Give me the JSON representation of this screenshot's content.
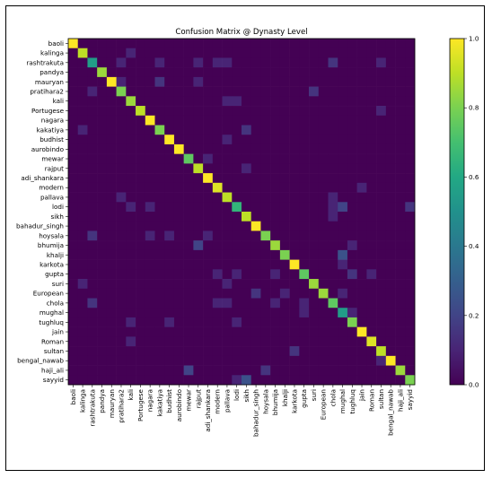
{
  "chart_data": {
    "type": "heatmap",
    "title": "Confusion Matrix @ Dynasty Level",
    "labels": [
      "baoli",
      "kalinga",
      "rashtrakuta",
      "pandya",
      "mauryan",
      "pratihara2",
      "kali",
      "Portugese",
      "nagara",
      "kakatiya",
      "budhist",
      "aurobindo",
      "mewar",
      "rajput",
      "adi_shankara",
      "modern",
      "pallava",
      "lodi",
      "sikh",
      "bahadur_singh",
      "hoysala",
      "bhumija",
      "khalji",
      "karkota",
      "gupta",
      "suri",
      "European",
      "chola",
      "mughal",
      "tughluq",
      "jain",
      "Roman",
      "sultan",
      "bengal_nawab",
      "haji_ali",
      "sayyid"
    ],
    "diagonal": [
      1.0,
      0.9,
      0.55,
      0.85,
      1.0,
      0.8,
      0.85,
      0.9,
      1.0,
      0.8,
      1.0,
      1.0,
      0.75,
      0.9,
      1.0,
      0.95,
      0.9,
      0.65,
      0.9,
      1.0,
      0.8,
      0.85,
      0.8,
      1.0,
      0.75,
      0.85,
      0.85,
      0.75,
      0.55,
      0.8,
      1.0,
      0.95,
      0.9,
      1.0,
      0.85,
      0.8
    ],
    "off_diagonal": [
      [
        1,
        6,
        0.1
      ],
      [
        2,
        5,
        0.1
      ],
      [
        2,
        9,
        0.1
      ],
      [
        2,
        13,
        0.1
      ],
      [
        2,
        15,
        0.1
      ],
      [
        2,
        16,
        0.1
      ],
      [
        2,
        27,
        0.15
      ],
      [
        2,
        32,
        0.1
      ],
      [
        4,
        5,
        0.1
      ],
      [
        4,
        9,
        0.15
      ],
      [
        4,
        13,
        0.1
      ],
      [
        5,
        2,
        0.1
      ],
      [
        5,
        25,
        0.15
      ],
      [
        6,
        16,
        0.1
      ],
      [
        6,
        17,
        0.1
      ],
      [
        7,
        32,
        0.1
      ],
      [
        9,
        1,
        0.1
      ],
      [
        9,
        18,
        0.15
      ],
      [
        10,
        16,
        0.1
      ],
      [
        12,
        14,
        0.1
      ],
      [
        13,
        18,
        0.1
      ],
      [
        15,
        30,
        0.1
      ],
      [
        16,
        5,
        0.1
      ],
      [
        16,
        27,
        0.1
      ],
      [
        17,
        6,
        0.1
      ],
      [
        17,
        8,
        0.1
      ],
      [
        17,
        27,
        0.1
      ],
      [
        17,
        28,
        0.2
      ],
      [
        17,
        35,
        0.15
      ],
      [
        18,
        27,
        0.1
      ],
      [
        20,
        2,
        0.15
      ],
      [
        20,
        8,
        0.1
      ],
      [
        20,
        10,
        0.1
      ],
      [
        20,
        14,
        0.1
      ],
      [
        21,
        13,
        0.2
      ],
      [
        21,
        29,
        0.1
      ],
      [
        22,
        28,
        0.25
      ],
      [
        23,
        28,
        0.1
      ],
      [
        24,
        15,
        0.1
      ],
      [
        24,
        17,
        0.1
      ],
      [
        24,
        21,
        0.1
      ],
      [
        24,
        29,
        0.15
      ],
      [
        24,
        31,
        0.1
      ],
      [
        25,
        1,
        0.1
      ],
      [
        25,
        16,
        0.1
      ],
      [
        26,
        19,
        0.15
      ],
      [
        26,
        22,
        0.1
      ],
      [
        26,
        28,
        0.1
      ],
      [
        27,
        2,
        0.15
      ],
      [
        27,
        15,
        0.1
      ],
      [
        27,
        16,
        0.1
      ],
      [
        27,
        21,
        0.1
      ],
      [
        27,
        24,
        0.1
      ],
      [
        28,
        24,
        0.1
      ],
      [
        28,
        29,
        0.1
      ],
      [
        29,
        6,
        0.1
      ],
      [
        29,
        10,
        0.1
      ],
      [
        29,
        17,
        0.1
      ],
      [
        31,
        6,
        0.1
      ],
      [
        32,
        23,
        0.15
      ],
      [
        33,
        32,
        0.1
      ],
      [
        34,
        12,
        0.2
      ],
      [
        34,
        20,
        0.15
      ],
      [
        35,
        18,
        0.25
      ],
      [
        35,
        17,
        0.1
      ]
    ],
    "vmin": 0.0,
    "vmax": 1.0,
    "colormap": "viridis",
    "colorbar_ticks": [
      "0.0",
      "0.2",
      "0.4",
      "0.6",
      "0.8",
      "1.0"
    ]
  }
}
